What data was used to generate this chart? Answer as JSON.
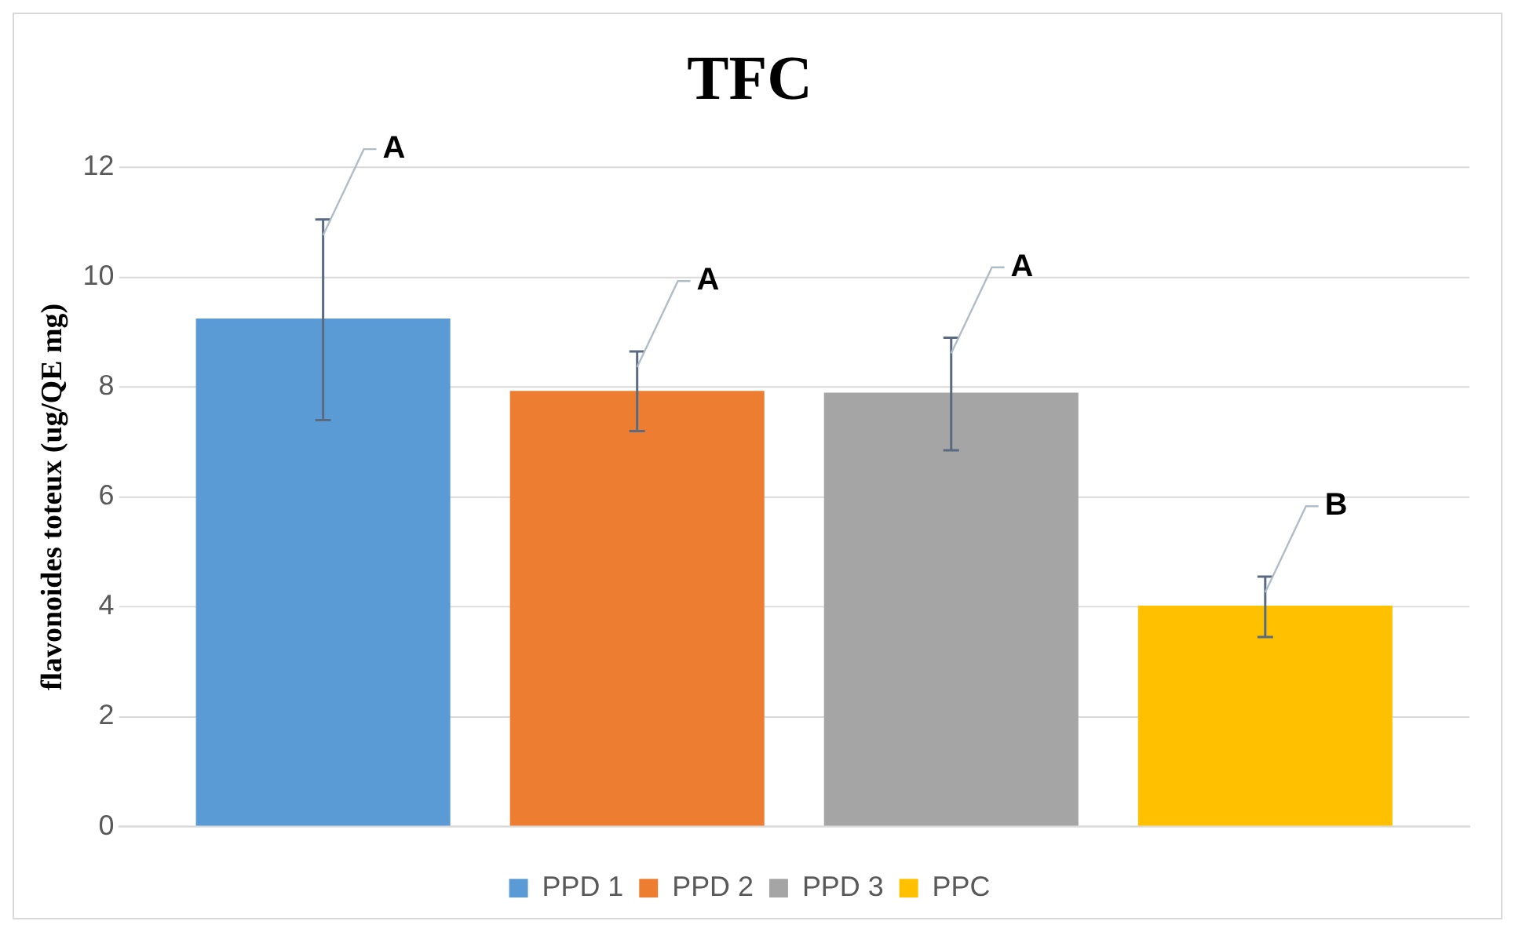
{
  "chart_data": {
    "type": "bar",
    "title": "TFC",
    "ylabel": "flavonoides toteux (ug/QE mg)",
    "categories": [
      null
    ],
    "series": [
      {
        "name": "PPD 1",
        "color": "#5b9bd5",
        "values": [
          9.25
        ],
        "errors": [
          [
            7.4,
            11.05
          ]
        ]
      },
      {
        "name": "PPD 2",
        "color": "#ed7d31",
        "values": [
          7.93
        ],
        "errors": [
          [
            7.2,
            8.65
          ]
        ]
      },
      {
        "name": "PPD 3",
        "color": "#a5a5a5",
        "values": [
          7.9
        ],
        "errors": [
          [
            6.85,
            8.9
          ]
        ]
      },
      {
        "name": "PPC",
        "color": "#ffc000",
        "values": [
          4.02
        ],
        "errors": [
          [
            3.45,
            4.55
          ]
        ]
      }
    ],
    "annotations": [
      "A",
      "A",
      "A",
      "B"
    ],
    "ylim": [
      0,
      12
    ],
    "yticks": [
      0,
      2,
      4,
      6,
      8,
      10,
      12
    ],
    "grid": "y",
    "legend": "bottom"
  }
}
